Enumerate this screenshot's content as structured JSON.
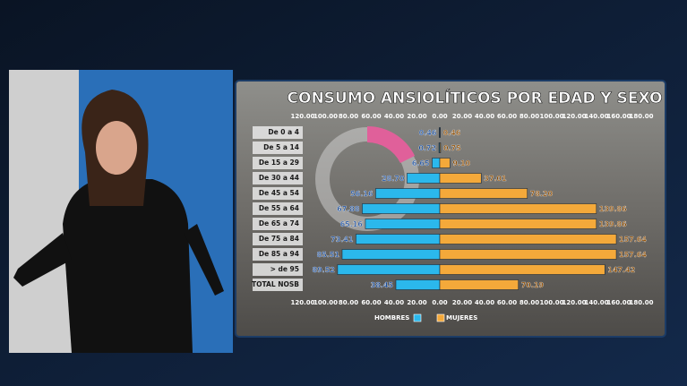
{
  "chart_data": {
    "type": "butterfly_bar",
    "title": "CONSUMO ANSIOLÍTICOS POR EDAD Y SEXO",
    "categories": [
      "De 0 a 4",
      "De 5 a 14",
      "De 15 a 29",
      "De 30 a 44",
      "De 45 a 54",
      "De 55 a 64",
      "De 65 a 74",
      "De 75 a 84",
      "De 85 a 94",
      "> de 95",
      "TOTAL NOSB"
    ],
    "series": [
      {
        "name": "HOMBRES",
        "color": "#2bb8ec",
        "side": "left",
        "values": [
          0.46,
          0.72,
          6.65,
          28.7,
          56.16,
          67.88,
          65.16,
          73.41,
          85.51,
          89.52,
          38.45
        ],
        "value_labels": [
          "0.46",
          "0.72",
          "6.65",
          "28.70",
          "56.16",
          "67.88",
          "65.16",
          "73.41",
          "85.51",
          "89.52",
          "38.45"
        ]
      },
      {
        "name": "MUJERES",
        "color": "#f4a93a",
        "side": "right",
        "values": [
          0.46,
          0.75,
          9.1,
          37.01,
          78.2,
          139.86,
          139.86,
          157.64,
          157.64,
          147.42,
          70.19
        ],
        "value_labels": [
          "0.46",
          "0.75",
          "9.10",
          "37.01",
          "78.20",
          "139.86",
          "139.86",
          "157.64",
          "157.64",
          "147.42",
          "70.19"
        ]
      }
    ],
    "left_xlim": [
      0,
      120
    ],
    "left_xticks": [
      {
        "value": 120,
        "label": "120.00"
      },
      {
        "value": 100,
        "label": "100.00"
      },
      {
        "value": 80,
        "label": "80.00"
      },
      {
        "value": 60,
        "label": "60.00"
      },
      {
        "value": 40,
        "label": "40.00"
      },
      {
        "value": 20,
        "label": "20.00"
      },
      {
        "value": 0,
        "label": "0.00"
      }
    ],
    "right_xlim": [
      0,
      180
    ],
    "right_xticks": [
      {
        "value": 20,
        "label": "20.00"
      },
      {
        "value": 40,
        "label": "40.00"
      },
      {
        "value": 60,
        "label": "60.00"
      },
      {
        "value": 80,
        "label": "80.00"
      },
      {
        "value": 100,
        "label": "100.00"
      },
      {
        "value": 120,
        "label": "120.00"
      },
      {
        "value": 140,
        "label": "140.00"
      },
      {
        "value": 160,
        "label": "160.00"
      },
      {
        "value": 180,
        "label": "180.00"
      }
    ]
  }
}
